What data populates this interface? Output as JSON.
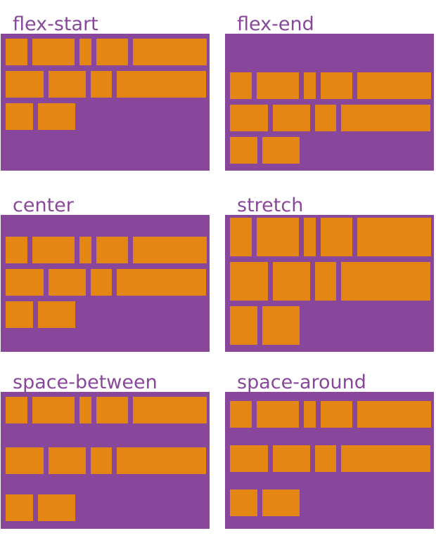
{
  "colors": {
    "container": "#88479a",
    "item": "#e38712",
    "label": "#88479a"
  },
  "panels": [
    {
      "label": "flex-start",
      "mode": "flex-start"
    },
    {
      "label": "flex-end",
      "mode": "flex-end"
    },
    {
      "label": "center",
      "mode": "center"
    },
    {
      "label": "stretch",
      "mode": "stretch"
    },
    {
      "label": "space-between",
      "mode": "space-between"
    },
    {
      "label": "space-around",
      "mode": "space-around"
    }
  ],
  "item_rows": [
    [
      31,
      60,
      17,
      45,
      105
    ],
    [
      54,
      53,
      30,
      127
    ],
    [
      39,
      53
    ]
  ]
}
